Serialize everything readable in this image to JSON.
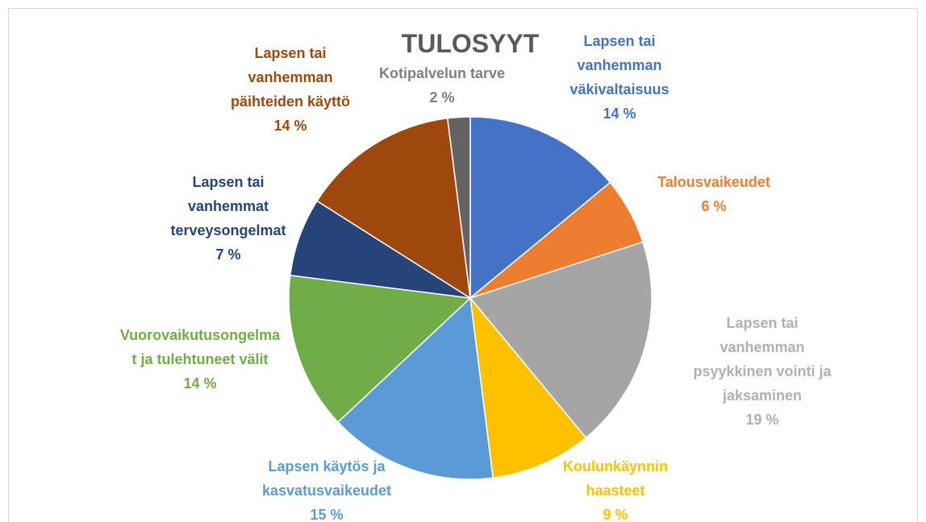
{
  "chart_data": {
    "type": "pie",
    "title": "TULOSYYT",
    "categories": [
      "Lapsen tai vanhemman väkivaltaisuus",
      "Talousvaikeudet",
      "Lapsen tai vanhemman psyykkinen vointi ja jaksaminen",
      "Koulunkäynnin haasteet",
      "Lapsen käytös ja kasvatusvaikeudet",
      "Vuorovaikutusongelmat ja tulehtuneet välit",
      "Lapsen tai vanhemmat terveysongelmat",
      "Lapsen tai vanhemman päihteiden käyttö",
      "Kotipalvelun tarve"
    ],
    "values": [
      14,
      6,
      19,
      9,
      15,
      14,
      7,
      14,
      2
    ],
    "value_labels": [
      "14 %",
      "6 %",
      "19 %",
      "9 %",
      "15 %",
      "14 %",
      "7 %",
      "14 %",
      "2 %"
    ],
    "colors": [
      "#4472c4",
      "#ed7d31",
      "#a5a5a5",
      "#ffc000",
      "#5b9bd5",
      "#70ad47",
      "#264478",
      "#9e480e",
      "#636363"
    ]
  }
}
